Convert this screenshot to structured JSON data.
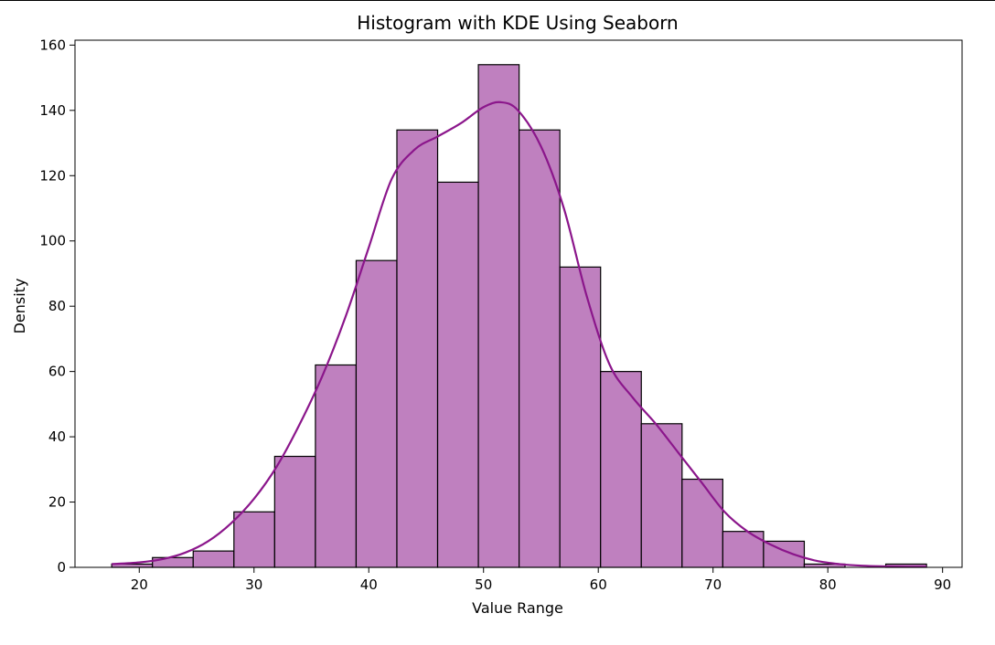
{
  "chart_data": {
    "type": "bar",
    "title": "Histogram with KDE Using Seaborn",
    "xlabel": "Value Range",
    "ylabel": "Density",
    "xlim": [
      14.4,
      91.7
    ],
    "ylim": [
      0,
      161.5
    ],
    "xticks": [
      20,
      30,
      40,
      50,
      60,
      70,
      80,
      90
    ],
    "yticks": [
      0,
      20,
      40,
      60,
      80,
      100,
      120,
      140,
      160
    ],
    "grid": false,
    "legend": "none",
    "colors": {
      "bar_fill": "#bf80bf",
      "bar_edge": "#000000",
      "kde_line": "#8b168b"
    },
    "bins": {
      "start": 17.6,
      "width": 3.55,
      "counts": [
        1,
        3,
        5,
        17,
        34,
        62,
        94,
        134,
        118,
        154,
        134,
        92,
        60,
        44,
        27,
        11,
        8,
        1,
        0,
        1
      ]
    },
    "kde": {
      "x": [
        17.6,
        20,
        22,
        24,
        26,
        28,
        30,
        32,
        34,
        36,
        38,
        40,
        42,
        44,
        46,
        48,
        50,
        51.5,
        53,
        55,
        57,
        59,
        61,
        63,
        65,
        67,
        69,
        71,
        73,
        75,
        77,
        79,
        81,
        83,
        85,
        87,
        88.6
      ],
      "y": [
        1,
        1.5,
        2.5,
        4.5,
        8,
        13.5,
        21,
        31,
        44,
        59,
        77,
        98,
        119,
        128,
        132,
        136,
        141,
        142.5,
        140,
        129,
        110,
        83,
        62,
        52,
        44,
        35,
        26,
        17,
        11,
        7,
        4,
        2,
        1,
        0.5,
        0.3,
        0.2,
        0.2
      ]
    }
  }
}
